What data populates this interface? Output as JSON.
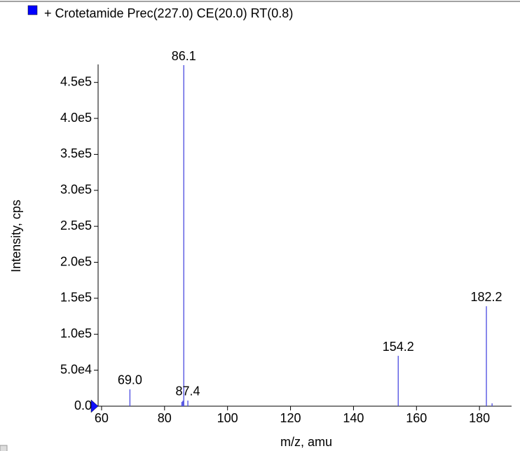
{
  "chart_data": {
    "type": "stick",
    "title": "+ Crotetamide Prec(227.0) CE(20.0) RT(0.8)",
    "xlabel": "m/z, amu",
    "ylabel": "Intensity, cps",
    "color": "#4a4ae0",
    "x": [
      69.0,
      85.5,
      85.8,
      86.1,
      87.4,
      154.2,
      182.2,
      184.0
    ],
    "values": [
      23400,
      6000,
      7500,
      474000,
      7800,
      70000,
      139000,
      4000
    ],
    "x_labels": [
      "69.0",
      null,
      null,
      "86.1",
      "87.4",
      "154.2",
      "182.2",
      null
    ],
    "xlim": [
      58.9,
      190.2
    ],
    "ylim": [
      0,
      475000
    ],
    "xticks": [
      60,
      80,
      100,
      120,
      140,
      160,
      180
    ],
    "yticks": [
      {
        "value": 0,
        "label": "0.0"
      },
      {
        "value": 50000,
        "label": "5.0e4"
      },
      {
        "value": 100000,
        "label": "1.0e5"
      },
      {
        "value": 150000,
        "label": "1.5e5"
      },
      {
        "value": 200000,
        "label": "2.0e5"
      },
      {
        "value": 250000,
        "label": "2.5e5"
      },
      {
        "value": 300000,
        "label": "3.0e5"
      },
      {
        "value": 350000,
        "label": "3.5e5"
      },
      {
        "value": 400000,
        "label": "4.0e5"
      },
      {
        "value": 450000,
        "label": "4.5e5"
      }
    ]
  }
}
